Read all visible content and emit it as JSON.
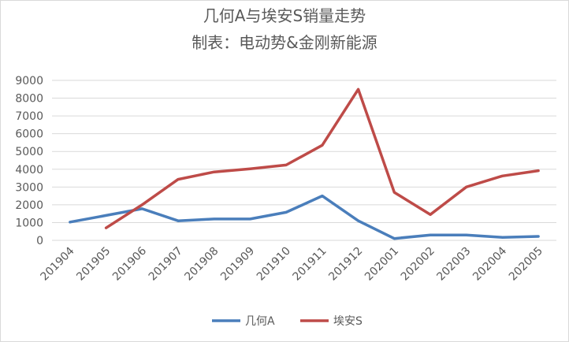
{
  "chart_data": {
    "type": "line",
    "title": "几何A与埃安S销量走势",
    "subtitle": "制表：电动势&金刚新能源",
    "categories": [
      "201904",
      "201905",
      "201906",
      "201907",
      "201908",
      "201909",
      "201910",
      "201911",
      "201912",
      "202001",
      "202002",
      "202003",
      "202004",
      "202005"
    ],
    "series": [
      {
        "name": "几何A",
        "color": "#4a7ebb",
        "values": [
          1030,
          1400,
          1780,
          1100,
          1200,
          1200,
          1580,
          2500,
          1100,
          100,
          300,
          300,
          170,
          220
        ]
      },
      {
        "name": "埃安S",
        "color": "#be4b48",
        "values": [
          null,
          700,
          2000,
          3430,
          3850,
          4020,
          4240,
          5350,
          8500,
          2700,
          1450,
          3000,
          3620,
          3920
        ]
      }
    ],
    "ylim": [
      0,
      9000
    ],
    "yticks": [
      0,
      1000,
      2000,
      3000,
      4000,
      5000,
      6000,
      7000,
      8000,
      9000
    ],
    "grid": true,
    "legend_position": "bottom"
  }
}
